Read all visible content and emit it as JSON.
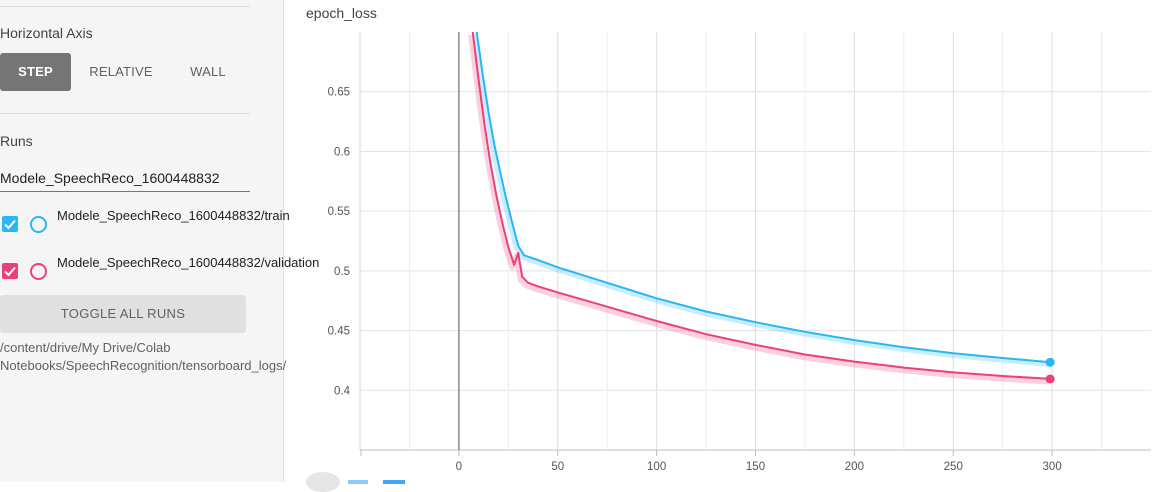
{
  "sidebar": {
    "horizontal_axis_label": "Horizontal Axis",
    "axis_options": [
      "STEP",
      "RELATIVE",
      "WALL"
    ],
    "axis_selected": "STEP",
    "runs_label": "Runs",
    "runs_filter_value": "Modele_SpeechReco_1600448832",
    "runs": [
      {
        "label": "Modele_SpeechReco_1600448832/train",
        "color": "#29b6f6",
        "checked": true
      },
      {
        "label": "Modele_SpeechReco_1600448832/validation",
        "color": "#ec407a",
        "checked": true
      }
    ],
    "toggle_all_label": "TOGGLE ALL RUNS",
    "log_dir": "/content/drive/My Drive/Colab Notebooks/SpeechRecognition/tensorboard_logs/"
  },
  "chart_data": {
    "type": "line",
    "title": "epoch_loss",
    "xlabel": "",
    "ylabel": "",
    "xlim": [
      -50,
      350
    ],
    "ylim": [
      0.35,
      0.7
    ],
    "x_ticks": [
      0,
      50,
      100,
      150,
      200,
      250,
      300
    ],
    "y_ticks": [
      0.4,
      0.45,
      0.5,
      0.55,
      0.6,
      0.65
    ],
    "grid": true,
    "series": [
      {
        "name": "Modele_SpeechReco_1600448832/train",
        "color": "#29b6f6",
        "x": [
          9,
          12,
          15,
          18,
          21,
          24,
          27,
          30,
          33,
          40,
          50,
          75,
          100,
          125,
          150,
          175,
          200,
          225,
          250,
          275,
          299
        ],
        "y": [
          0.7,
          0.665,
          0.633,
          0.605,
          0.582,
          0.56,
          0.54,
          0.521,
          0.513,
          0.509,
          0.503,
          0.49,
          0.477,
          0.466,
          0.457,
          0.449,
          0.442,
          0.436,
          0.431,
          0.427,
          0.4235
        ]
      },
      {
        "name": "Modele_SpeechReco_1600448832/validation",
        "color": "#ec407a",
        "x": [
          7,
          10,
          13,
          16,
          19,
          22,
          25,
          28,
          30,
          32,
          35,
          40,
          50,
          75,
          100,
          125,
          150,
          175,
          200,
          225,
          250,
          275,
          299
        ],
        "y": [
          0.7,
          0.66,
          0.622,
          0.59,
          0.563,
          0.54,
          0.52,
          0.505,
          0.515,
          0.495,
          0.49,
          0.487,
          0.482,
          0.47,
          0.458,
          0.447,
          0.438,
          0.43,
          0.424,
          0.419,
          0.415,
          0.412,
          0.4095
        ]
      }
    ]
  }
}
